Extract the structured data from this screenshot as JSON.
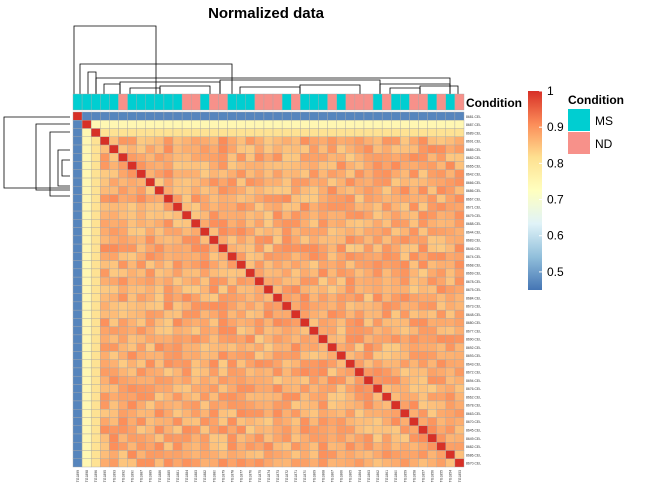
{
  "chart_data": {
    "type": "heatmap",
    "title": "Normalized data",
    "annotation_label": "Condition",
    "samples": [
      "8681.CEL",
      "8687.CEL",
      "8689.CEL",
      "8691.CEL",
      "8685.CEL",
      "8682.CEL",
      "8665.CEL",
      "8642.CEL",
      "8666.CEL",
      "8686.CEL",
      "8667.CEL",
      "8671.CEL",
      "8679.CEL",
      "8688.CEL",
      "8644.CEL",
      "8683.CEL",
      "8646.CEL",
      "8674.CEL",
      "8668.CEL",
      "8669.CEL",
      "8678.CEL",
      "8675.CEL",
      "8684.CEL",
      "8673.CEL",
      "8648.CEL",
      "8680.CEL",
      "8677.CEL",
      "8690.CEL",
      "8692.CEL",
      "8693.CEL",
      "8643.CEL",
      "8672.CEL",
      "8694.CEL",
      "8676.CEL",
      "8662.CEL",
      "8678.CEL",
      "8663.CEL",
      "8670.CEL",
      "8645.CEL",
      "8649.CEL",
      "8682.CEL",
      "8686.CEL",
      "8670.CEL"
    ],
    "column_labels": [
      "TG1899",
      "TG1898",
      "TG1896",
      "TG1895",
      "TG1893",
      "TG1892",
      "TG1890",
      "TG1887",
      "TG1889",
      "TG1886",
      "TG1885",
      "TG1881",
      "TG1884",
      "TG1883",
      "TG1882",
      "TG1880",
      "TG1879",
      "TG1878",
      "TG1877",
      "TG1876",
      "TG1875",
      "TG1874",
      "TG1873",
      "TG1872",
      "TG1871",
      "TG1870",
      "TG1869",
      "TG1868",
      "TG1867",
      "TG1866",
      "TG1865",
      "TG1864",
      "TG1863",
      "TG1862",
      "TG1861",
      "TG1860",
      "TG1859",
      "TG1858",
      "TG1857",
      "TG1856",
      "TG1855",
      "TG1854",
      "TG1853"
    ],
    "condition": [
      "MS",
      "MS",
      "MS",
      "MS",
      "MS",
      "ND",
      "MS",
      "MS",
      "MS",
      "MS",
      "MS",
      "MS",
      "ND",
      "ND",
      "MS",
      "ND",
      "ND",
      "MS",
      "MS",
      "MS",
      "ND",
      "ND",
      "ND",
      "MS",
      "ND",
      "MS",
      "MS",
      "MS",
      "ND",
      "MS",
      "ND",
      "ND",
      "ND",
      "MS",
      "ND",
      "MS",
      "MS",
      "ND",
      "ND",
      "MS",
      "ND",
      "MS",
      "ND"
    ],
    "correlation_summary": {
      "diagonal": 1.0,
      "outlier_sample_index": 0,
      "outlier_correlation": 0.47,
      "second_sample_correlation": 0.75,
      "third_sample_correlation": 0.81,
      "typical_correlation": 0.87,
      "typical_range": [
        0.84,
        0.91
      ]
    },
    "colorbar": {
      "min": 0.45,
      "max": 1.0,
      "ticks": [
        0.5,
        0.6,
        0.7,
        0.8,
        0.9,
        1
      ],
      "tick_labels": [
        "0.5",
        "0.6",
        "0.7",
        "0.8",
        "0.9",
        "1"
      ],
      "colors": [
        "#4575B4",
        "#91BFDB",
        "#E0F3F8",
        "#FFFFBF",
        "#FEE090",
        "#FC8D59",
        "#D73027"
      ]
    },
    "legend": {
      "title": "Condition",
      "items": [
        {
          "label": "MS",
          "color": "#00CED1"
        },
        {
          "label": "ND",
          "color": "#F7918A"
        }
      ],
      "placement": "right"
    },
    "cell_border_color": "#A9A9A9"
  }
}
